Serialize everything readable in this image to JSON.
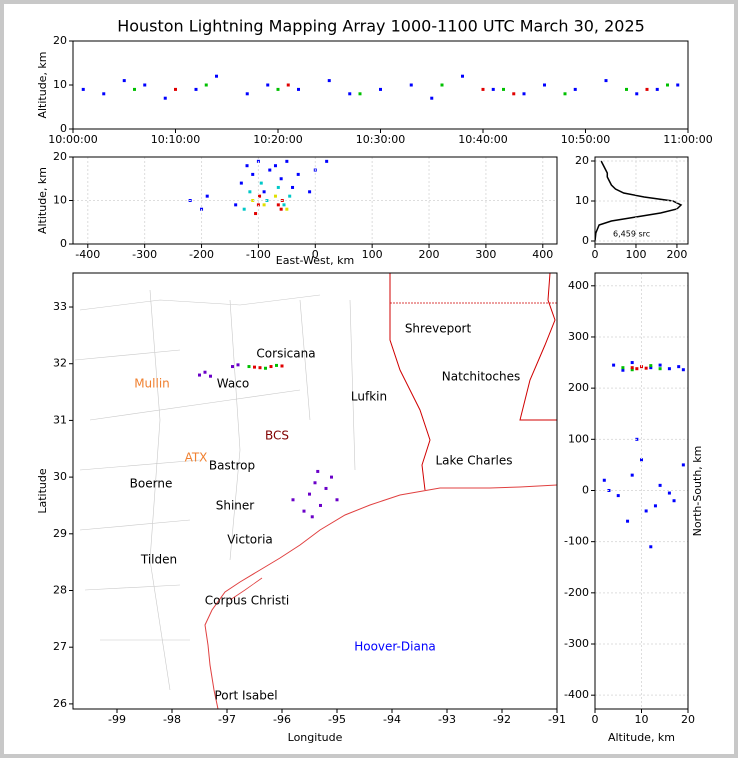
{
  "chart_data": [
    {
      "type": "scatter",
      "title": "Houston Lightning Mapping Array 1000-1100 UTC March 30, 2025",
      "ylabel": "Altitude, km",
      "xlim": [
        0,
        60
      ],
      "ylim": [
        0,
        20
      ],
      "yticks": [
        0,
        10,
        20
      ],
      "xticks": [
        {
          "value": 0,
          "label": "10:00:00"
        },
        {
          "value": 10,
          "label": "10:10:00"
        },
        {
          "value": 20,
          "label": "10:20:00"
        },
        {
          "value": 30,
          "label": "10:30:00"
        },
        {
          "value": 40,
          "label": "10:40:00"
        },
        {
          "value": 50,
          "label": "10:50:00"
        },
        {
          "value": 60,
          "label": "11:00:00"
        }
      ],
      "grid": false,
      "series": [
        {
          "color": "#0000ff",
          "x": [
            1,
            3,
            5,
            7,
            9,
            12,
            14,
            17,
            19,
            22,
            25,
            27,
            30,
            33,
            35,
            38,
            41,
            44,
            46,
            49,
            52,
            55,
            57,
            59
          ],
          "y": [
            9,
            8,
            11,
            10,
            7,
            9,
            12,
            8,
            10,
            9,
            11,
            8,
            9,
            10,
            7,
            12,
            9,
            8,
            10,
            9,
            11,
            8,
            9,
            10
          ]
        },
        {
          "color": "#00c000",
          "x": [
            6,
            13,
            20,
            28,
            36,
            42,
            48,
            54,
            58
          ],
          "y": [
            9,
            10,
            9,
            8,
            10,
            9,
            8,
            9,
            10
          ]
        },
        {
          "color": "#e00000",
          "x": [
            10,
            21,
            40,
            43,
            56
          ],
          "y": [
            9,
            10,
            9,
            8,
            9
          ]
        }
      ]
    },
    {
      "type": "scatter",
      "xlabel": "East-West, km",
      "ylabel": "Altitude, km",
      "xlim": [
        -426,
        425
      ],
      "xticks": [
        -400,
        -300,
        -200,
        -100,
        0,
        100,
        200,
        300,
        400
      ],
      "ylim": [
        0,
        20
      ],
      "yticks": [
        0,
        10,
        20
      ],
      "grid": true,
      "series": [
        {
          "color": "#0000ff",
          "x": [
            -220,
            -200,
            -190,
            -140,
            -130,
            -120,
            -110,
            -100,
            -90,
            -80,
            -70,
            -60,
            -50,
            -40,
            -30,
            -10,
            0,
            20
          ],
          "y": [
            10,
            8,
            11,
            9,
            14,
            18,
            16,
            19,
            12,
            17,
            18,
            15,
            19,
            13,
            16,
            12,
            17,
            19
          ]
        },
        {
          "color": "#00c8c8",
          "x": [
            -125,
            -115,
            -95,
            -85,
            -65,
            -55,
            -45
          ],
          "y": [
            8,
            12,
            14,
            10,
            13,
            9,
            11
          ]
        },
        {
          "color": "#e0e000",
          "x": [
            -110,
            -90,
            -70,
            -50
          ],
          "y": [
            10,
            9,
            11,
            8
          ]
        },
        {
          "color": "#e00000",
          "x": [
            -100,
            -98,
            -60,
            -58,
            -105,
            -65
          ],
          "y": [
            9,
            11,
            8,
            10,
            7,
            9
          ]
        }
      ]
    },
    {
      "type": "line",
      "annotation": "6,459 src",
      "xlim": [
        0,
        227
      ],
      "xticks": [
        0,
        100,
        200
      ],
      "ylim": [
        -0.75,
        21
      ],
      "yticks": [
        0,
        10,
        20
      ],
      "grid": true,
      "color": "#000000",
      "x": [
        0,
        2,
        10,
        40,
        100,
        160,
        200,
        210,
        190,
        120,
        70,
        50,
        40,
        35,
        30,
        30,
        25,
        20,
        15
      ],
      "y": [
        0,
        2,
        4,
        5,
        6,
        7,
        8,
        9,
        10,
        11,
        12,
        13,
        14,
        15,
        16,
        17,
        18,
        19,
        20
      ]
    },
    {
      "type": "scatter",
      "xlabel": "Longitude",
      "ylabel": "Latitude",
      "xlim": [
        -99.8,
        -91
      ],
      "xticks": [
        -99,
        -98,
        -97,
        -96,
        -95,
        -94,
        -93,
        -92,
        -91
      ],
      "ylim": [
        25.91,
        33.6
      ],
      "yticks": [
        26,
        27,
        28,
        29,
        30,
        31,
        32,
        33
      ],
      "grid": false,
      "annotations": [
        {
          "text": "Corsicana",
          "color": "#000000"
        },
        {
          "text": "Waco",
          "color": "#000000"
        },
        {
          "text": "Mullin",
          "color": "#f08030"
        },
        {
          "text": "Lufkin",
          "color": "#000000"
        },
        {
          "text": "Shreveport",
          "color": "#000000"
        },
        {
          "text": "Natchitoches",
          "color": "#000000"
        },
        {
          "text": "Lake Charles",
          "color": "#000000"
        },
        {
          "text": "ATX",
          "color": "#f08030"
        },
        {
          "text": "Bastrop",
          "color": "#000000"
        },
        {
          "text": "BCS",
          "color": "#800000"
        },
        {
          "text": "Boerne",
          "color": "#000000"
        },
        {
          "text": "Shiner",
          "color": "#000000"
        },
        {
          "text": "Victoria",
          "color": "#000000"
        },
        {
          "text": "Tilden",
          "color": "#000000"
        },
        {
          "text": "Corpus Christi",
          "color": "#000000"
        },
        {
          "text": "Port Isabel",
          "color": "#000000"
        },
        {
          "text": "Hoover-Diana",
          "color": "#0000ff"
        }
      ],
      "series": [
        {
          "color": "#6a00c8",
          "x": [
            -97.5,
            -97.4,
            -97.3,
            -96.9,
            -96.8,
            -95.8,
            -95.5,
            -95.4,
            -95.3,
            -95.2,
            -95.0,
            -95.6,
            -95.1,
            -95.45,
            -95.35
          ],
          "y": [
            31.8,
            31.85,
            31.78,
            31.95,
            31.98,
            29.6,
            29.7,
            29.9,
            29.5,
            29.8,
            29.6,
            29.4,
            30.0,
            29.3,
            30.1
          ]
        },
        {
          "color": "#00c000",
          "x": [
            -96.6,
            -96.3,
            -96.1
          ],
          "y": [
            31.95,
            31.92,
            31.97
          ]
        },
        {
          "color": "#e00000",
          "x": [
            -96.4,
            -96.2,
            -96.0,
            -96.5
          ],
          "y": [
            31.93,
            31.95,
            31.96,
            31.94
          ]
        }
      ]
    },
    {
      "type": "scatter",
      "xlabel": "Altitude, km",
      "ylabel": "North-South, km",
      "xlim": [
        0,
        20
      ],
      "xticks": [
        0,
        10,
        20
      ],
      "ylim": [
        -427,
        425
      ],
      "yticks": [
        -400,
        -300,
        -200,
        -100,
        0,
        100,
        200,
        300,
        400
      ],
      "grid": true,
      "series": [
        {
          "color": "#0000ff",
          "x": [
            4,
            6,
            8,
            12,
            14,
            16,
            18,
            19,
            2,
            5,
            8,
            11,
            14,
            17,
            19,
            3,
            7,
            10,
            13,
            16,
            9,
            12
          ],
          "y": [
            245,
            235,
            250,
            240,
            245,
            238,
            242,
            236,
            20,
            -10,
            30,
            -40,
            10,
            -20,
            50,
            0,
            -60,
            60,
            -30,
            -5,
            100,
            -110
          ]
        },
        {
          "color": "#00c000",
          "x": [
            6,
            8,
            12,
            14
          ],
          "y": [
            240,
            236,
            244,
            238
          ]
        },
        {
          "color": "#e00000",
          "x": [
            8,
            9,
            10,
            11
          ],
          "y": [
            240,
            238,
            242,
            239
          ]
        }
      ]
    }
  ]
}
